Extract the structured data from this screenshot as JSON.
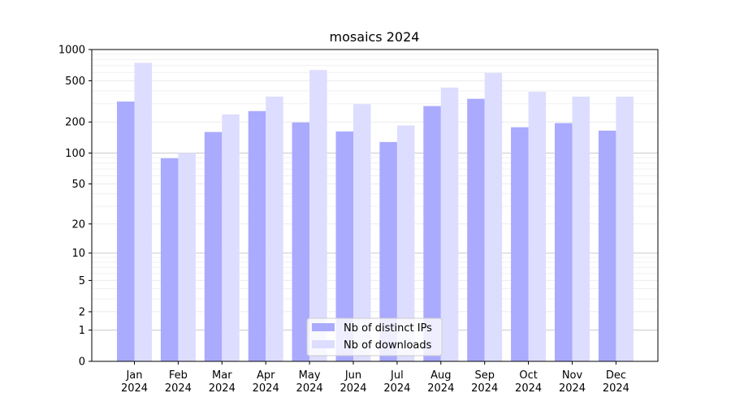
{
  "chart_data": {
    "type": "bar",
    "title": "mosaics 2024",
    "xlabel": "",
    "ylabel": "",
    "yscale": "symlog",
    "ylim": [
      0,
      1000
    ],
    "y_ticks": [
      0,
      1,
      2,
      5,
      10,
      20,
      50,
      100,
      200,
      500,
      1000
    ],
    "y_tick_labels": [
      "0",
      "1",
      "2",
      "5",
      "10",
      "20",
      "50",
      "100",
      "200",
      "500",
      "1000"
    ],
    "grid": true,
    "legend_position": "bottom-center",
    "categories": [
      {
        "month": "Jan",
        "year": "2024"
      },
      {
        "month": "Feb",
        "year": "2024"
      },
      {
        "month": "Mar",
        "year": "2024"
      },
      {
        "month": "Apr",
        "year": "2024"
      },
      {
        "month": "May",
        "year": "2024"
      },
      {
        "month": "Jun",
        "year": "2024"
      },
      {
        "month": "Jul",
        "year": "2024"
      },
      {
        "month": "Aug",
        "year": "2024"
      },
      {
        "month": "Sep",
        "year": "2024"
      },
      {
        "month": "Oct",
        "year": "2024"
      },
      {
        "month": "Nov",
        "year": "2024"
      },
      {
        "month": "Dec",
        "year": "2024"
      }
    ],
    "series": [
      {
        "name": "Nb of distinct IPs",
        "color": "#aaaaff",
        "values": [
          315,
          89,
          160,
          255,
          198,
          162,
          128,
          285,
          335,
          178,
          195,
          165
        ]
      },
      {
        "name": "Nb of downloads",
        "color": "#ddddff",
        "values": [
          745,
          100,
          237,
          352,
          635,
          298,
          185,
          430,
          595,
          392,
          352,
          352
        ]
      }
    ]
  }
}
